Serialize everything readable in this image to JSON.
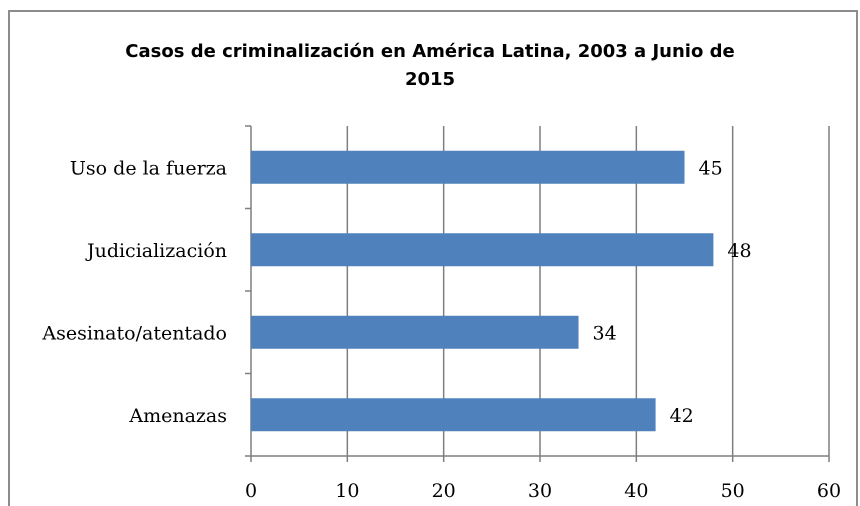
{
  "chart_data": {
    "type": "bar",
    "orientation": "horizontal",
    "title_lines": [
      "Casos de criminalización en América Latina, 2003 a Junio de",
      "2015"
    ],
    "categories": [
      "Uso de la fuerza",
      "Judicialización",
      "Asesinato/atentado",
      "Amenazas"
    ],
    "values": [
      45,
      48,
      34,
      42
    ],
    "xlim": [
      0,
      60
    ],
    "xticks": [
      0,
      10,
      20,
      30,
      40,
      50,
      60
    ],
    "xlabel": "",
    "ylabel": "",
    "grid": "vertical",
    "legend": "none",
    "bar_color": "#4f81bd",
    "data_labels": true
  }
}
